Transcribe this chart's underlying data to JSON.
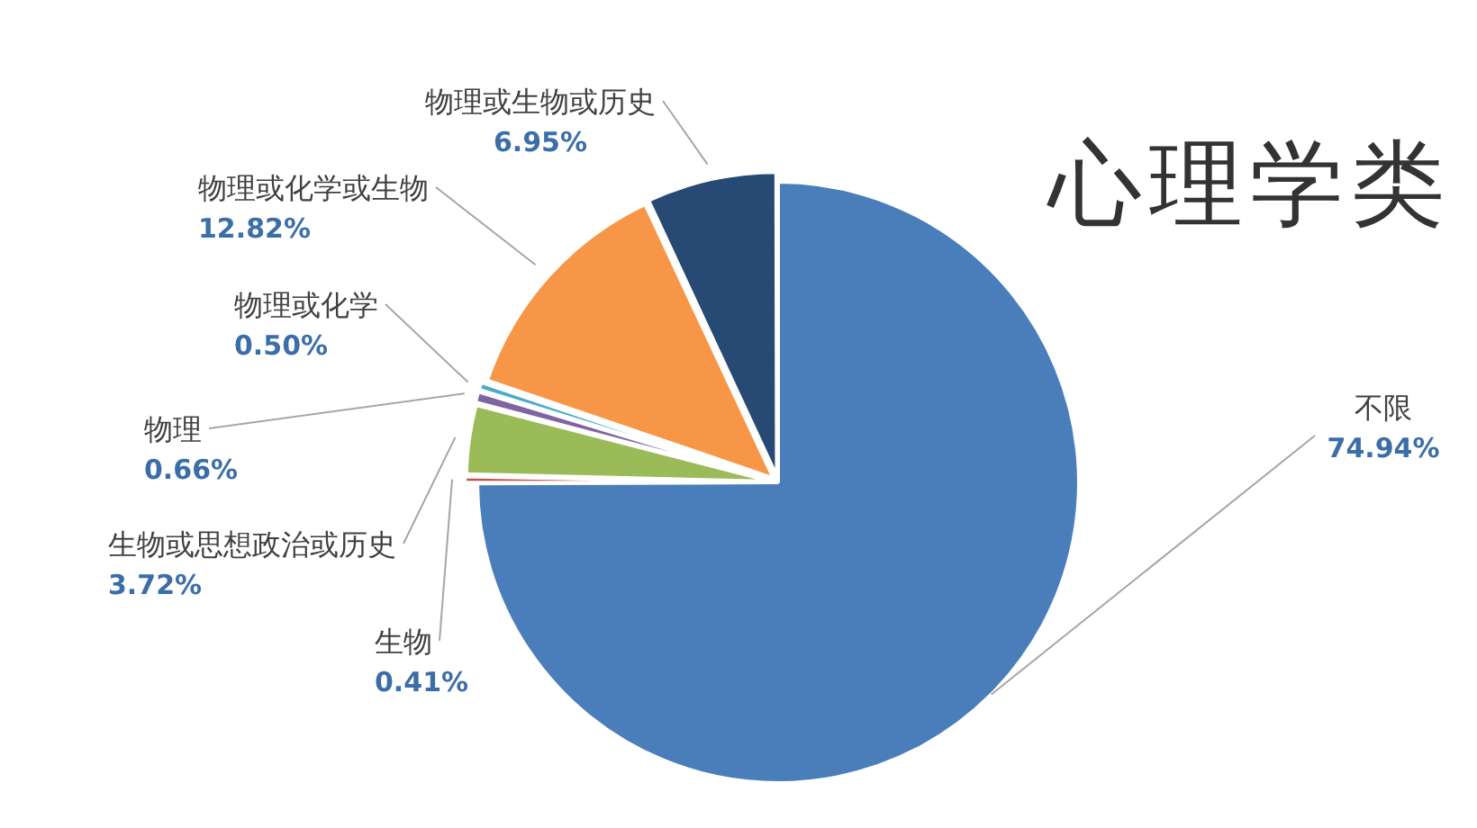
{
  "chart_data": {
    "type": "pie",
    "title": "心理学类",
    "categories": [
      "不限",
      "生物",
      "生物或思想政治或历史",
      "物理",
      "物理或化学",
      "物理或化学或生物",
      "物理或生物或历史"
    ],
    "values": [
      74.94,
      0.41,
      3.72,
      0.66,
      0.5,
      12.82,
      6.95
    ],
    "colors": [
      "#4a7ebb",
      "#c0504d",
      "#9bbb59",
      "#8064a2",
      "#4bacc6",
      "#f79646",
      "#264a73"
    ],
    "value_labels": [
      "74.94%",
      "0.41%",
      "3.72%",
      "0.66%",
      "0.50%",
      "12.82%",
      "6.95%"
    ]
  }
}
